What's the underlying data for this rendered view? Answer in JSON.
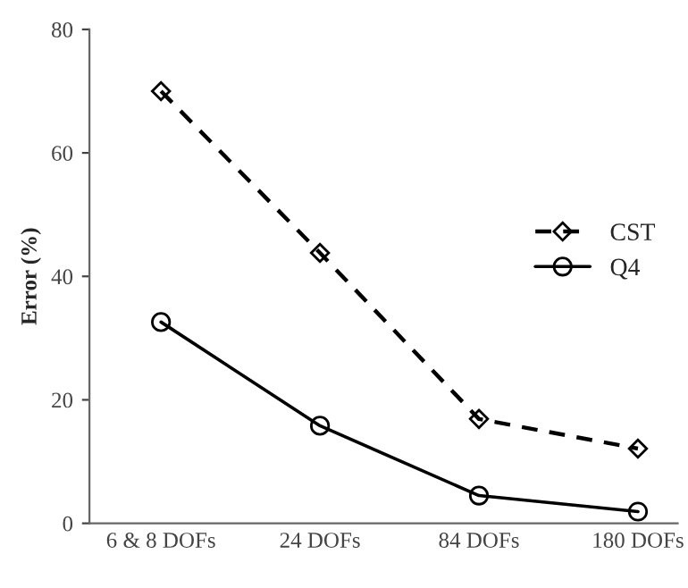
{
  "chart_data": {
    "type": "line",
    "ylabel": "Error (%)",
    "categories": [
      "6 & 8 DOFs",
      "24 DOFs",
      "84 DOFs",
      "180 DOFs"
    ],
    "series": [
      {
        "name": "CST",
        "color": "#000000",
        "values": [
          70,
          43.8,
          16.9,
          12.1
        ],
        "marker": "diamond",
        "line_style": "dashed"
      },
      {
        "name": "Q4",
        "color": "#000000",
        "values": [
          32.6,
          15.8,
          4.5,
          1.9
        ],
        "marker": "circle",
        "line_style": "solid"
      }
    ],
    "ylim": [
      0,
      80
    ],
    "yticks": [
      0,
      20,
      40,
      60,
      80
    ],
    "grid": false,
    "legend": "right"
  }
}
